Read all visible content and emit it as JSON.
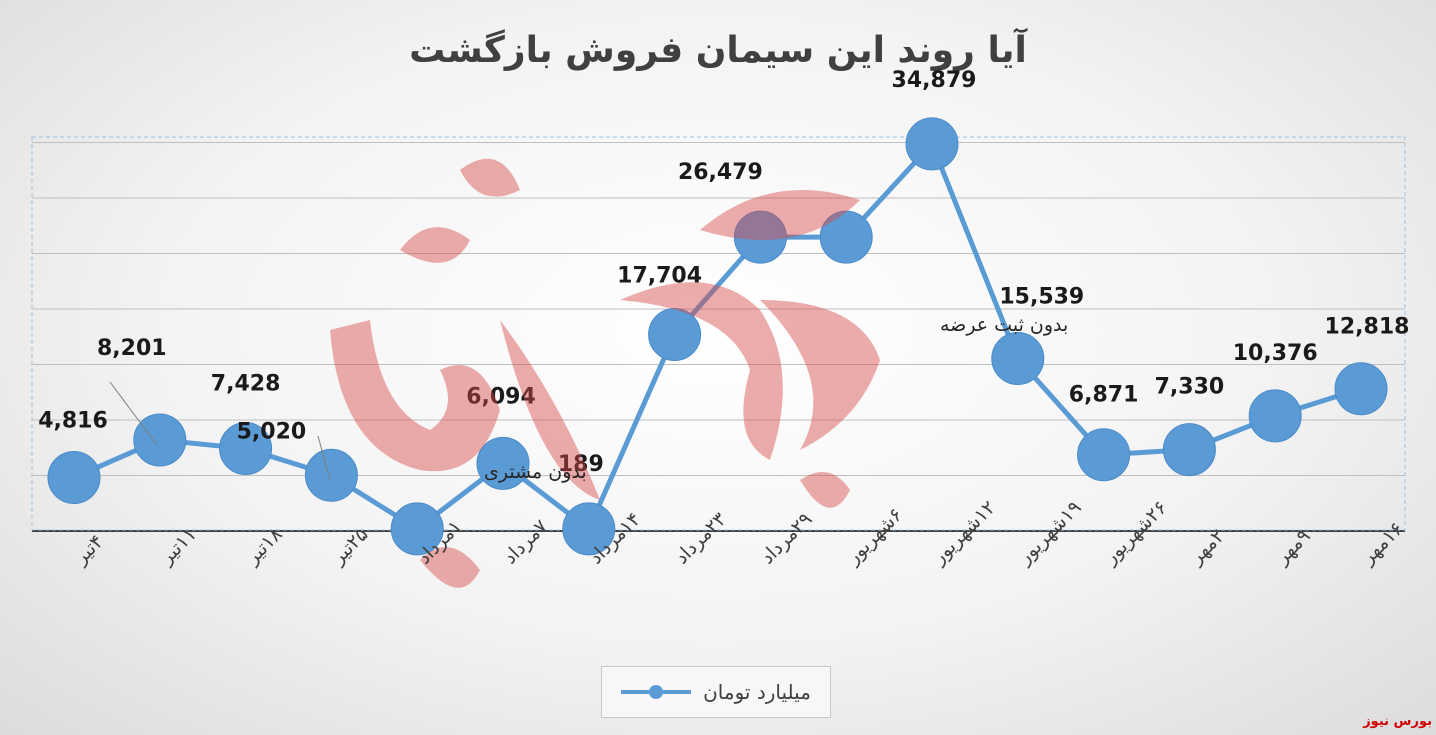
{
  "title": "آیا روند این سیمان فروش بازگشت",
  "chart_data": {
    "type": "line",
    "title": "آیا روند این سیمان فروش بازگشت",
    "categories": [
      "۴تیر",
      "۱۱تیر",
      "۱۸تیر",
      "۲۵تیر",
      "۱مرداد",
      "۷مرداد",
      "۱۴مرداد",
      "۲۳مرداد",
      "۲۹مرداد",
      "۶شهریور",
      "۱۲شهریور",
      "۱۹شهریور",
      "۲۶شهریور",
      "۲مهر",
      "۹مهر",
      "۱۶مهر"
    ],
    "series": [
      {
        "name": "میلیارد تومان",
        "values": [
          4816,
          8201,
          7428,
          5020,
          189,
          6094,
          189,
          17704,
          26479,
          26479,
          34879,
          15539,
          6871,
          7330,
          10376,
          12818
        ]
      }
    ],
    "data_labels": [
      "4,816",
      "8,201",
      "7,428",
      "5,020",
      null,
      "6,094",
      "189",
      "17,704",
      "26,479",
      null,
      "34,879",
      "15,539",
      "6,871",
      "7,330",
      "10,376",
      "12,818"
    ],
    "annotations": [
      "بدون ثبت عرضه",
      "بدون مشتری"
    ],
    "ylim": [
      0,
      35500
    ],
    "grid": true,
    "legend": "bottom",
    "color": "#5b9bd5"
  },
  "watermark": "بورس نیوز",
  "source": "بورس نیوز"
}
